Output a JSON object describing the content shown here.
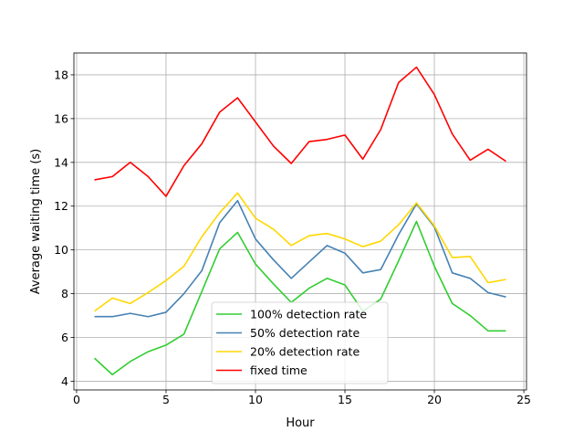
{
  "chart_data": {
    "type": "line",
    "title": "",
    "xlabel": "Hour",
    "ylabel": "Average waiting time (s)",
    "xlim": [
      -0.15,
      25.15
    ],
    "ylim": [
      3.6,
      19.0
    ],
    "xticks": [
      0,
      5,
      10,
      15,
      20,
      25
    ],
    "yticks": [
      4,
      6,
      8,
      10,
      12,
      14,
      16,
      18
    ],
    "grid": true,
    "legend_position": "lower center",
    "x": [
      1,
      2,
      3,
      4,
      5,
      6,
      7,
      8,
      9,
      10,
      11,
      12,
      13,
      14,
      15,
      16,
      17,
      18,
      19,
      20,
      21,
      22,
      23,
      24
    ],
    "series": [
      {
        "name": "100% detection rate",
        "color": "#32cd32",
        "values": [
          5.05,
          4.3,
          4.9,
          5.35,
          5.65,
          6.15,
          8.1,
          10.05,
          10.8,
          9.35,
          8.45,
          7.6,
          8.25,
          8.7,
          8.4,
          7.2,
          7.75,
          9.5,
          11.3,
          9.25,
          7.55,
          7.0,
          6.3,
          6.3
        ]
      },
      {
        "name": "50% detection rate",
        "color": "#4682b4",
        "values": [
          6.95,
          6.95,
          7.1,
          6.95,
          7.15,
          8.0,
          9.05,
          11.25,
          12.25,
          10.5,
          9.55,
          8.7,
          9.45,
          10.2,
          9.85,
          8.95,
          9.1,
          10.7,
          12.1,
          11.05,
          8.95,
          8.7,
          8.05,
          7.85
        ]
      },
      {
        "name": "20% detection rate",
        "color": "#ffd700",
        "values": [
          7.2,
          7.8,
          7.55,
          8.05,
          8.6,
          9.25,
          10.6,
          11.7,
          12.6,
          11.45,
          10.95,
          10.2,
          10.65,
          10.75,
          10.5,
          10.15,
          10.4,
          11.15,
          12.15,
          11.1,
          9.65,
          9.7,
          8.5,
          8.65
        ]
      },
      {
        "name": "fixed time",
        "color": "#ff0000",
        "values": [
          13.2,
          13.35,
          14.0,
          13.35,
          12.45,
          13.85,
          14.85,
          16.3,
          16.95,
          15.85,
          14.75,
          13.95,
          14.95,
          15.05,
          15.25,
          14.15,
          15.5,
          17.65,
          18.35,
          17.1,
          15.3,
          14.1,
          14.6,
          14.05
        ]
      }
    ]
  }
}
